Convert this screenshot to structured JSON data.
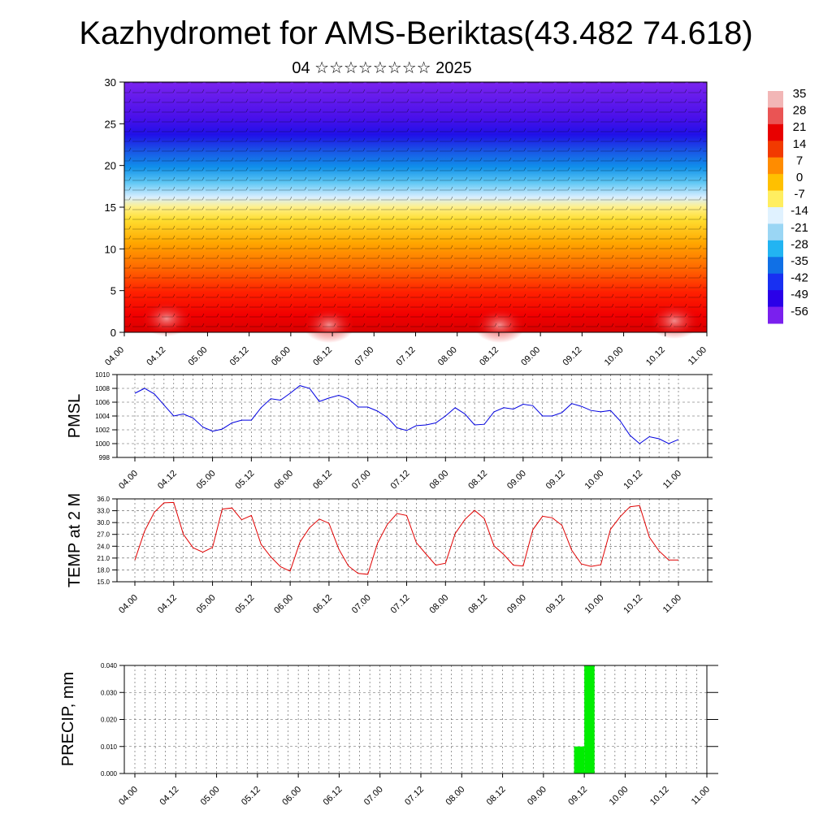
{
  "title": "Kazhydromet for AMS-Beriktas(43.482 74.618)",
  "subtitle": "04 ☆☆☆☆☆☆☆☆ 2025",
  "chart_data": [
    {
      "type": "heatmap",
      "ylabel": "",
      "ylim": [
        0,
        30
      ],
      "y_ticks": [
        0,
        5,
        10,
        15,
        20,
        25,
        30
      ],
      "x_tick_labels": [
        "04.00",
        "04.12",
        "05.00",
        "05.12",
        "06.00",
        "06.12",
        "07.00",
        "07.12",
        "08.00",
        "08.12",
        "09.00",
        "09.12",
        "10.00",
        "10.12",
        "11.00"
      ],
      "colorbar": {
        "labels": [
          "35",
          "28",
          "21",
          "14",
          "7",
          "0",
          "-7",
          "-14",
          "-21",
          "-28",
          "-35",
          "-42",
          "-49",
          "-56"
        ],
        "colors": [
          "#f2b6b6",
          "#ea5454",
          "#e80000",
          "#f23a00",
          "#ff8c00",
          "#ffc000",
          "#ffee60",
          "#e0f2ff",
          "#9ad6f4",
          "#22b4f2",
          "#1070e6",
          "#1830f2",
          "#2a00e8",
          "#7a20ee"
        ]
      },
      "wind_barbs": true
    },
    {
      "type": "line",
      "ylabel": "PMSL",
      "ylim": [
        998,
        1010
      ],
      "y_ticks": [
        998,
        1000,
        1002,
        1004,
        1006,
        1008,
        1010
      ],
      "x_tick_labels": [
        "04.00",
        "04.12",
        "05.00",
        "05.12",
        "06.00",
        "06.12",
        "07.00",
        "07.12",
        "08.00",
        "08.12",
        "09.00",
        "09.12",
        "10.00",
        "10.12",
        "11.00"
      ],
      "series": [
        {
          "color": "#0000e0",
          "values": [
            1007.3,
            1008.0,
            1007.2,
            1005.6,
            1004.0,
            1004.3,
            1003.7,
            1002.4,
            1001.8,
            1002.1,
            1003.0,
            1003.4,
            1003.4,
            1005.2,
            1006.5,
            1006.3,
            1007.3,
            1008.4,
            1008.0,
            1006.1,
            1006.6,
            1007.0,
            1006.5,
            1005.3,
            1005.3,
            1004.7,
            1003.8,
            1002.3,
            1001.9,
            1002.6,
            1002.7,
            1003.0,
            1004.0,
            1005.2,
            1004.3,
            1002.7,
            1002.8,
            1004.6,
            1005.2,
            1005.0,
            1005.7,
            1005.5,
            1004.0,
            1004.0,
            1004.5,
            1005.8,
            1005.4,
            1004.8,
            1004.6,
            1004.8,
            1003.3,
            1001.2,
            1000.0,
            1001.0,
            1000.7,
            1000.0,
            1000.6
          ]
        }
      ]
    },
    {
      "type": "line",
      "ylabel": "TEMP at 2 M",
      "ylim": [
        15,
        36
      ],
      "y_ticks": [
        "15.0",
        "18.0",
        "21.0",
        "24.0",
        "27.0",
        "30.0",
        "33.0",
        "36.0"
      ],
      "x_tick_labels": [
        "04.00",
        "04.12",
        "05.00",
        "05.12",
        "06.00",
        "06.12",
        "07.00",
        "07.12",
        "08.00",
        "08.12",
        "09.00",
        "09.12",
        "10.00",
        "10.12",
        "11.00"
      ],
      "series": [
        {
          "color": "#e00000",
          "values": [
            20.5,
            27.8,
            32.6,
            35.0,
            35.1,
            27.0,
            23.6,
            22.5,
            23.7,
            33.4,
            33.7,
            30.7,
            31.8,
            24.5,
            21.3,
            18.8,
            17.7,
            25.0,
            28.7,
            30.9,
            29.8,
            23.3,
            19.0,
            17.1,
            16.9,
            24.8,
            29.5,
            32.3,
            31.8,
            24.9,
            22.0,
            19.2,
            19.7,
            27.2,
            30.8,
            33.1,
            31.0,
            24.1,
            21.9,
            19.2,
            19.0,
            28.2,
            31.6,
            31.2,
            29.3,
            23.0,
            19.5,
            18.9,
            19.3,
            28.3,
            31.5,
            34.0,
            34.3,
            26.3,
            22.8,
            20.5,
            20.5
          ]
        }
      ]
    },
    {
      "type": "bar",
      "ylabel": "PRECIP, mm",
      "ylim": [
        0,
        0.04
      ],
      "y_ticks": [
        "0.000",
        "0.010",
        "0.020",
        "0.030",
        "0.040"
      ],
      "x_tick_labels": [
        "04.00",
        "04.12",
        "05.00",
        "05.12",
        "06.00",
        "06.12",
        "07.00",
        "07.12",
        "08.00",
        "08.12",
        "09.00",
        "09.12",
        "10.00",
        "10.12",
        "11.00"
      ],
      "bar_color": "#00ee00",
      "bars": [
        {
          "start_hour": 129,
          "end_hour": 132,
          "value": 0.01
        },
        {
          "start_hour": 132,
          "end_hour": 135,
          "value": 0.04
        }
      ]
    }
  ]
}
